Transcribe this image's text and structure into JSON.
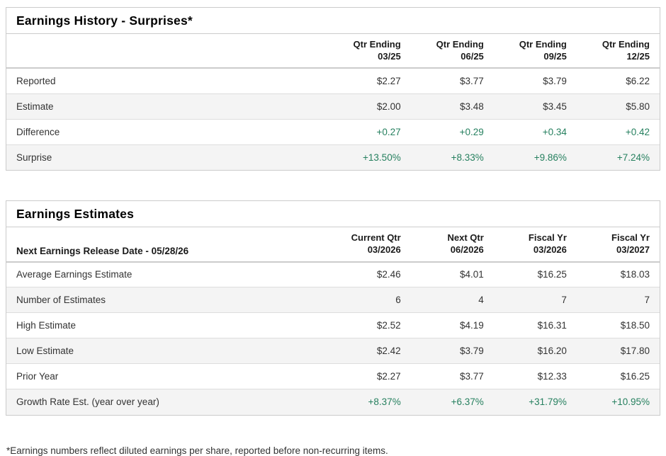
{
  "colors": {
    "positive_value": "#26805f",
    "row_alt_background": "#f4f4f4",
    "table_border": "#cbcbcb",
    "title_text": "#000000",
    "body_text": "#333333"
  },
  "tables": [
    {
      "title": "Earnings History - Surprises*",
      "header_label": "",
      "columns": [
        {
          "line1": "Qtr Ending",
          "line2": "03/25"
        },
        {
          "line1": "Qtr Ending",
          "line2": "06/25"
        },
        {
          "line1": "Qtr Ending",
          "line2": "09/25"
        },
        {
          "line1": "Qtr Ending",
          "line2": "12/25"
        }
      ],
      "rows": [
        {
          "label": "Reported",
          "values": [
            "$2.27",
            "$3.77",
            "$3.79",
            "$6.22"
          ],
          "positive": false
        },
        {
          "label": "Estimate",
          "values": [
            "$2.00",
            "$3.48",
            "$3.45",
            "$5.80"
          ],
          "positive": false
        },
        {
          "label": "Difference",
          "values": [
            "+0.27",
            "+0.29",
            "+0.34",
            "+0.42"
          ],
          "positive": true
        },
        {
          "label": "Surprise",
          "values": [
            "+13.50%",
            "+8.33%",
            "+9.86%",
            "+7.24%"
          ],
          "positive": true
        }
      ]
    },
    {
      "title": "Earnings Estimates",
      "header_label": "Next Earnings Release Date - 05/28/26",
      "columns": [
        {
          "line1": "Current Qtr",
          "line2": "03/2026"
        },
        {
          "line1": "Next Qtr",
          "line2": "06/2026"
        },
        {
          "line1": "Fiscal Yr",
          "line2": "03/2026"
        },
        {
          "line1": "Fiscal Yr",
          "line2": "03/2027"
        }
      ],
      "rows": [
        {
          "label": "Average Earnings Estimate",
          "values": [
            "$2.46",
            "$4.01",
            "$16.25",
            "$18.03"
          ],
          "positive": false
        },
        {
          "label": "Number of Estimates",
          "values": [
            "6",
            "4",
            "7",
            "7"
          ],
          "positive": false
        },
        {
          "label": "High Estimate",
          "values": [
            "$2.52",
            "$4.19",
            "$16.31",
            "$18.50"
          ],
          "positive": false
        },
        {
          "label": "Low Estimate",
          "values": [
            "$2.42",
            "$3.79",
            "$16.20",
            "$17.80"
          ],
          "positive": false
        },
        {
          "label": "Prior Year",
          "values": [
            "$2.27",
            "$3.77",
            "$12.33",
            "$16.25"
          ],
          "positive": false
        },
        {
          "label": "Growth Rate Est. (year over year)",
          "values": [
            "+8.37%",
            "+6.37%",
            "+31.79%",
            "+10.95%"
          ],
          "positive": true
        }
      ]
    }
  ],
  "footnote": "*Earnings numbers reflect diluted earnings per share, reported before non-recurring items."
}
